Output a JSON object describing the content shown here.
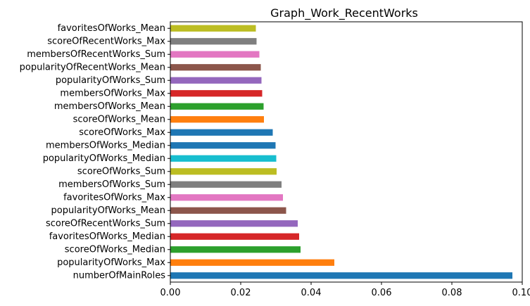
{
  "chart_data": {
    "type": "bar",
    "orientation": "horizontal",
    "title": "Graph_Work_RecentWorks",
    "xlabel": "",
    "ylabel": "",
    "xlim": [
      0,
      0.1
    ],
    "xticks": [
      0.0,
      0.02,
      0.04,
      0.06,
      0.08,
      0.1
    ],
    "xtick_labels": [
      "0.00",
      "0.02",
      "0.04",
      "0.06",
      "0.08",
      "0.10"
    ],
    "grid": false,
    "legend": "none",
    "categories": [
      "numberOfMainRoles",
      "popularityOfWorks_Max",
      "scoreOfWorks_Median",
      "favoritesOfWorks_Median",
      "scoreOfRecentWorks_Sum",
      "popularityOfWorks_Mean",
      "favoritesOfWorks_Max",
      "membersOfWorks_Sum",
      "scoreOfWorks_Sum",
      "popularityOfWorks_Median",
      "membersOfWorks_Median",
      "scoreOfWorks_Max",
      "scoreOfWorks_Mean",
      "membersOfWorks_Mean",
      "membersOfWorks_Max",
      "popularityOfWorks_Sum",
      "popularityOfRecentWorks_Mean",
      "membersOfRecentWorks_Sum",
      "scoreOfRecentWorks_Max",
      "favoritesOfWorks_Mean"
    ],
    "values": [
      0.0972,
      0.0466,
      0.037,
      0.0366,
      0.0362,
      0.0329,
      0.032,
      0.0316,
      0.0302,
      0.0301,
      0.0299,
      0.0291,
      0.0266,
      0.0265,
      0.0261,
      0.0259,
      0.0257,
      0.0253,
      0.0245,
      0.0243
    ],
    "colors": [
      "#1f77b4",
      "#ff7f0e",
      "#2ca02c",
      "#d62728",
      "#9467bd",
      "#8c564b",
      "#e377c2",
      "#7f7f7f",
      "#bcbd22",
      "#17becf",
      "#1f77b4",
      "#1f77b4",
      "#ff7f0e",
      "#2ca02c",
      "#d62728",
      "#9467bd",
      "#8c564b",
      "#e377c2",
      "#7f7f7f",
      "#bcbd22"
    ]
  }
}
